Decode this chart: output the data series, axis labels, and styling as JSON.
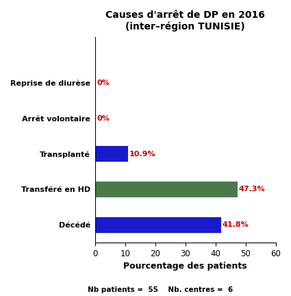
{
  "title_line1": "Causes d'arrêt de DP en 2016",
  "title_line2": "(inter–région TUNISIE)",
  "categories": [
    "Décédé",
    "Transféré en HD",
    "Transplanté",
    "Arrêt volontaire",
    "Reprise de diurèse"
  ],
  "values": [
    41.8,
    47.3,
    10.9,
    0,
    0
  ],
  "bar_colors": [
    "#1a1acd",
    "#4a7a4a",
    "#1a1acd",
    "#1a1acd",
    "#1a1acd"
  ],
  "value_labels": [
    "41.8%",
    "47.3%",
    "10.9%",
    "0%",
    "0%"
  ],
  "xlabel": "Pourcentage des patients",
  "footer": "Nb patients =  55    Nb. centres =  6",
  "xlim": [
    0,
    60
  ],
  "xticks": [
    0,
    10,
    20,
    30,
    40,
    50,
    60
  ],
  "label_color": "#cc0000",
  "bar_height": 0.45,
  "background_color": "#ffffff",
  "title_fontsize": 10,
  "axis_label_fontsize": 9,
  "tick_fontsize": 8.5,
  "category_fontsize": 8,
  "value_fontsize": 8,
  "footer_fontsize": 7.5
}
